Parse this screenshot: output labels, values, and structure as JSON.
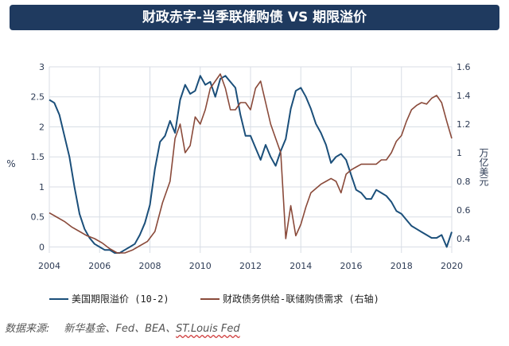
{
  "header": {
    "title": "财政赤字-当季联储购债 VS 期限溢价"
  },
  "source": {
    "label": "数据来源:",
    "text": "新华基金、Fed、BEA、",
    "underlined": "ST.Louis Fed"
  },
  "colors": {
    "title_bg": "#1f3a5f",
    "term_premium": "#1b4f7a",
    "deficit": "#8a4a3a",
    "grid": "#d8dee6"
  },
  "chart_data": {
    "type": "line",
    "title": "财政赤字-当季联储购债 VS 期限溢价",
    "xlabel": "",
    "ylabel_left": "%",
    "ylabel_right": "万亿美元",
    "xlim": [
      2004,
      2020
    ],
    "ylim_left": [
      -0.1,
      3
    ],
    "ylim_right": [
      0.3,
      1.6
    ],
    "x_ticks": [
      "2004",
      "2006",
      "2008",
      "2010",
      "2012",
      "2014",
      "2016",
      "2018",
      "2020"
    ],
    "y_ticks_left": [
      "0",
      "0.5",
      "1",
      "1.5",
      "2",
      "2.5",
      "3"
    ],
    "y_ticks_right": [
      "0.4",
      "0.6",
      "0.8",
      "1",
      "1.2",
      "1.4",
      "1.6"
    ],
    "grid": true,
    "legend_position": "bottom",
    "series": [
      {
        "name": "美国期限溢价 (10-2)",
        "axis": "left",
        "x": [
          2004.0,
          2004.2,
          2004.4,
          2004.6,
          2004.8,
          2005.0,
          2005.2,
          2005.4,
          2005.6,
          2005.8,
          2006.0,
          2006.2,
          2006.4,
          2006.6,
          2006.8,
          2007.0,
          2007.2,
          2007.4,
          2007.6,
          2007.8,
          2008.0,
          2008.2,
          2008.4,
          2008.6,
          2008.8,
          2009.0,
          2009.2,
          2009.4,
          2009.6,
          2009.8,
          2010.0,
          2010.2,
          2010.4,
          2010.6,
          2010.8,
          2011.0,
          2011.2,
          2011.4,
          2011.6,
          2011.8,
          2012.0,
          2012.2,
          2012.4,
          2012.6,
          2012.8,
          2013.0,
          2013.2,
          2013.4,
          2013.6,
          2013.8,
          2014.0,
          2014.2,
          2014.4,
          2014.6,
          2014.8,
          2015.0,
          2015.2,
          2015.4,
          2015.6,
          2015.8,
          2016.0,
          2016.2,
          2016.4,
          2016.6,
          2016.8,
          2017.0,
          2017.2,
          2017.4,
          2017.6,
          2017.8,
          2018.0,
          2018.2,
          2018.4,
          2018.6,
          2018.8,
          2019.0,
          2019.2,
          2019.4,
          2019.6,
          2019.8,
          2020.0
        ],
        "values": [
          2.45,
          2.4,
          2.2,
          1.85,
          1.5,
          1.0,
          0.55,
          0.3,
          0.15,
          0.05,
          0.0,
          -0.05,
          -0.05,
          -0.1,
          -0.1,
          -0.05,
          0.0,
          0.05,
          0.2,
          0.4,
          0.7,
          1.3,
          1.75,
          1.85,
          2.1,
          1.9,
          2.45,
          2.7,
          2.55,
          2.6,
          2.85,
          2.7,
          2.75,
          2.5,
          2.8,
          2.85,
          2.75,
          2.65,
          2.2,
          1.85,
          1.85,
          1.65,
          1.45,
          1.7,
          1.5,
          1.35,
          1.6,
          1.8,
          2.3,
          2.6,
          2.65,
          2.5,
          2.3,
          2.05,
          1.9,
          1.7,
          1.4,
          1.5,
          1.55,
          1.45,
          1.2,
          0.95,
          0.9,
          0.8,
          0.8,
          0.95,
          0.9,
          0.85,
          0.75,
          0.6,
          0.55,
          0.45,
          0.35,
          0.3,
          0.25,
          0.2,
          0.15,
          0.15,
          0.2,
          0.0,
          0.25
        ]
      },
      {
        "name": "财政债务供给-联储购债需求 (右轴)",
        "axis": "right",
        "x": [
          2004.0,
          2004.3,
          2004.6,
          2004.9,
          2005.2,
          2005.5,
          2005.8,
          2006.1,
          2006.4,
          2006.7,
          2007.0,
          2007.3,
          2007.6,
          2007.9,
          2008.2,
          2008.5,
          2008.8,
          2009.0,
          2009.2,
          2009.4,
          2009.6,
          2009.8,
          2010.0,
          2010.2,
          2010.4,
          2010.6,
          2010.8,
          2011.0,
          2011.2,
          2011.4,
          2011.6,
          2011.8,
          2012.0,
          2012.2,
          2012.4,
          2012.6,
          2012.8,
          2013.0,
          2013.2,
          2013.4,
          2013.6,
          2013.8,
          2014.0,
          2014.2,
          2014.4,
          2014.6,
          2014.8,
          2015.0,
          2015.2,
          2015.4,
          2015.6,
          2015.8,
          2016.0,
          2016.2,
          2016.4,
          2016.6,
          2016.8,
          2017.0,
          2017.2,
          2017.4,
          2017.6,
          2017.8,
          2018.0,
          2018.2,
          2018.4,
          2018.6,
          2018.8,
          2019.0,
          2019.2,
          2019.4,
          2019.6,
          2019.8,
          2020.0
        ],
        "values": [
          0.58,
          0.55,
          0.52,
          0.48,
          0.45,
          0.42,
          0.4,
          0.37,
          0.33,
          0.3,
          0.3,
          0.32,
          0.35,
          0.38,
          0.45,
          0.65,
          0.8,
          1.1,
          1.2,
          1.0,
          1.05,
          1.25,
          1.2,
          1.3,
          1.45,
          1.5,
          1.55,
          1.45,
          1.3,
          1.3,
          1.35,
          1.35,
          1.3,
          1.45,
          1.5,
          1.35,
          1.2,
          1.1,
          1.0,
          0.4,
          0.63,
          0.42,
          0.5,
          0.62,
          0.72,
          0.75,
          0.78,
          0.8,
          0.82,
          0.8,
          0.72,
          0.85,
          0.88,
          0.9,
          0.92,
          0.92,
          0.92,
          0.92,
          0.95,
          0.95,
          1.0,
          1.08,
          1.12,
          1.22,
          1.3,
          1.33,
          1.35,
          1.34,
          1.38,
          1.4,
          1.35,
          1.22,
          1.1
        ]
      }
    ]
  }
}
